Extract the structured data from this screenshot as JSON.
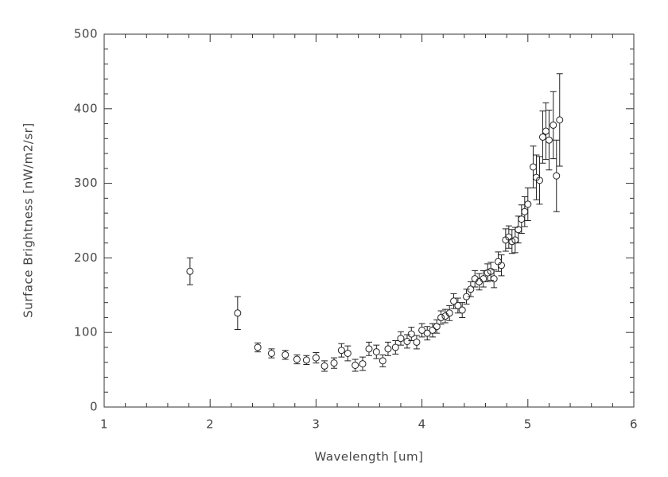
{
  "chart_data": {
    "type": "scatter",
    "xlabel": "Wavelength [um]",
    "ylabel": "Surface Brightness [nW/m2/sr]",
    "xlim": [
      1,
      6
    ],
    "xticks": [
      1,
      2,
      3,
      4,
      5,
      6
    ],
    "ylim": [
      0,
      500
    ],
    "yticks": [
      0,
      100,
      200,
      300,
      400,
      500
    ],
    "series": [
      {
        "color": "#222222",
        "x": [
          1.81,
          2.26,
          2.45,
          2.58,
          2.71,
          2.82,
          2.91,
          3.0,
          3.08,
          3.17,
          3.24,
          3.3,
          3.37,
          3.44,
          3.5,
          3.57,
          3.63,
          3.68,
          3.75,
          3.8,
          3.86,
          3.9,
          3.95,
          4.0,
          4.05,
          4.1,
          4.14,
          4.18,
          4.22,
          4.26,
          4.3,
          4.34,
          4.38,
          4.42,
          4.46,
          4.5,
          4.54,
          4.58,
          4.62,
          4.65,
          4.68,
          4.72,
          4.75,
          4.79,
          4.82,
          4.85,
          4.88,
          4.91,
          4.94,
          4.97,
          5.0,
          5.05,
          5.08,
          5.11,
          5.14,
          5.17,
          5.2,
          5.24,
          5.27,
          5.3
        ],
        "values": [
          182,
          126,
          80,
          72,
          70,
          64,
          63,
          66,
          55,
          59,
          76,
          72,
          56,
          58,
          78,
          74,
          62,
          78,
          80,
          92,
          88,
          98,
          87,
          103,
          99,
          103,
          108,
          120,
          122,
          126,
          142,
          136,
          130,
          148,
          158,
          172,
          168,
          172,
          180,
          182,
          172,
          195,
          190,
          224,
          228,
          222,
          224,
          238,
          252,
          262,
          272,
          322,
          308,
          304,
          362,
          370,
          358,
          378,
          310,
          385
        ],
        "errors": [
          18,
          22,
          6,
          6,
          6,
          6,
          6,
          7,
          7,
          7,
          9,
          10,
          8,
          9,
          9,
          9,
          8,
          9,
          9,
          9,
          9,
          9,
          9,
          9,
          9,
          9,
          9,
          9,
          9,
          10,
          10,
          10,
          10,
          10,
          10,
          11,
          11,
          11,
          12,
          12,
          12,
          13,
          14,
          15,
          15,
          16,
          17,
          18,
          19,
          20,
          22,
          28,
          30,
          32,
          35,
          38,
          40,
          45,
          48,
          62
        ]
      }
    ]
  }
}
